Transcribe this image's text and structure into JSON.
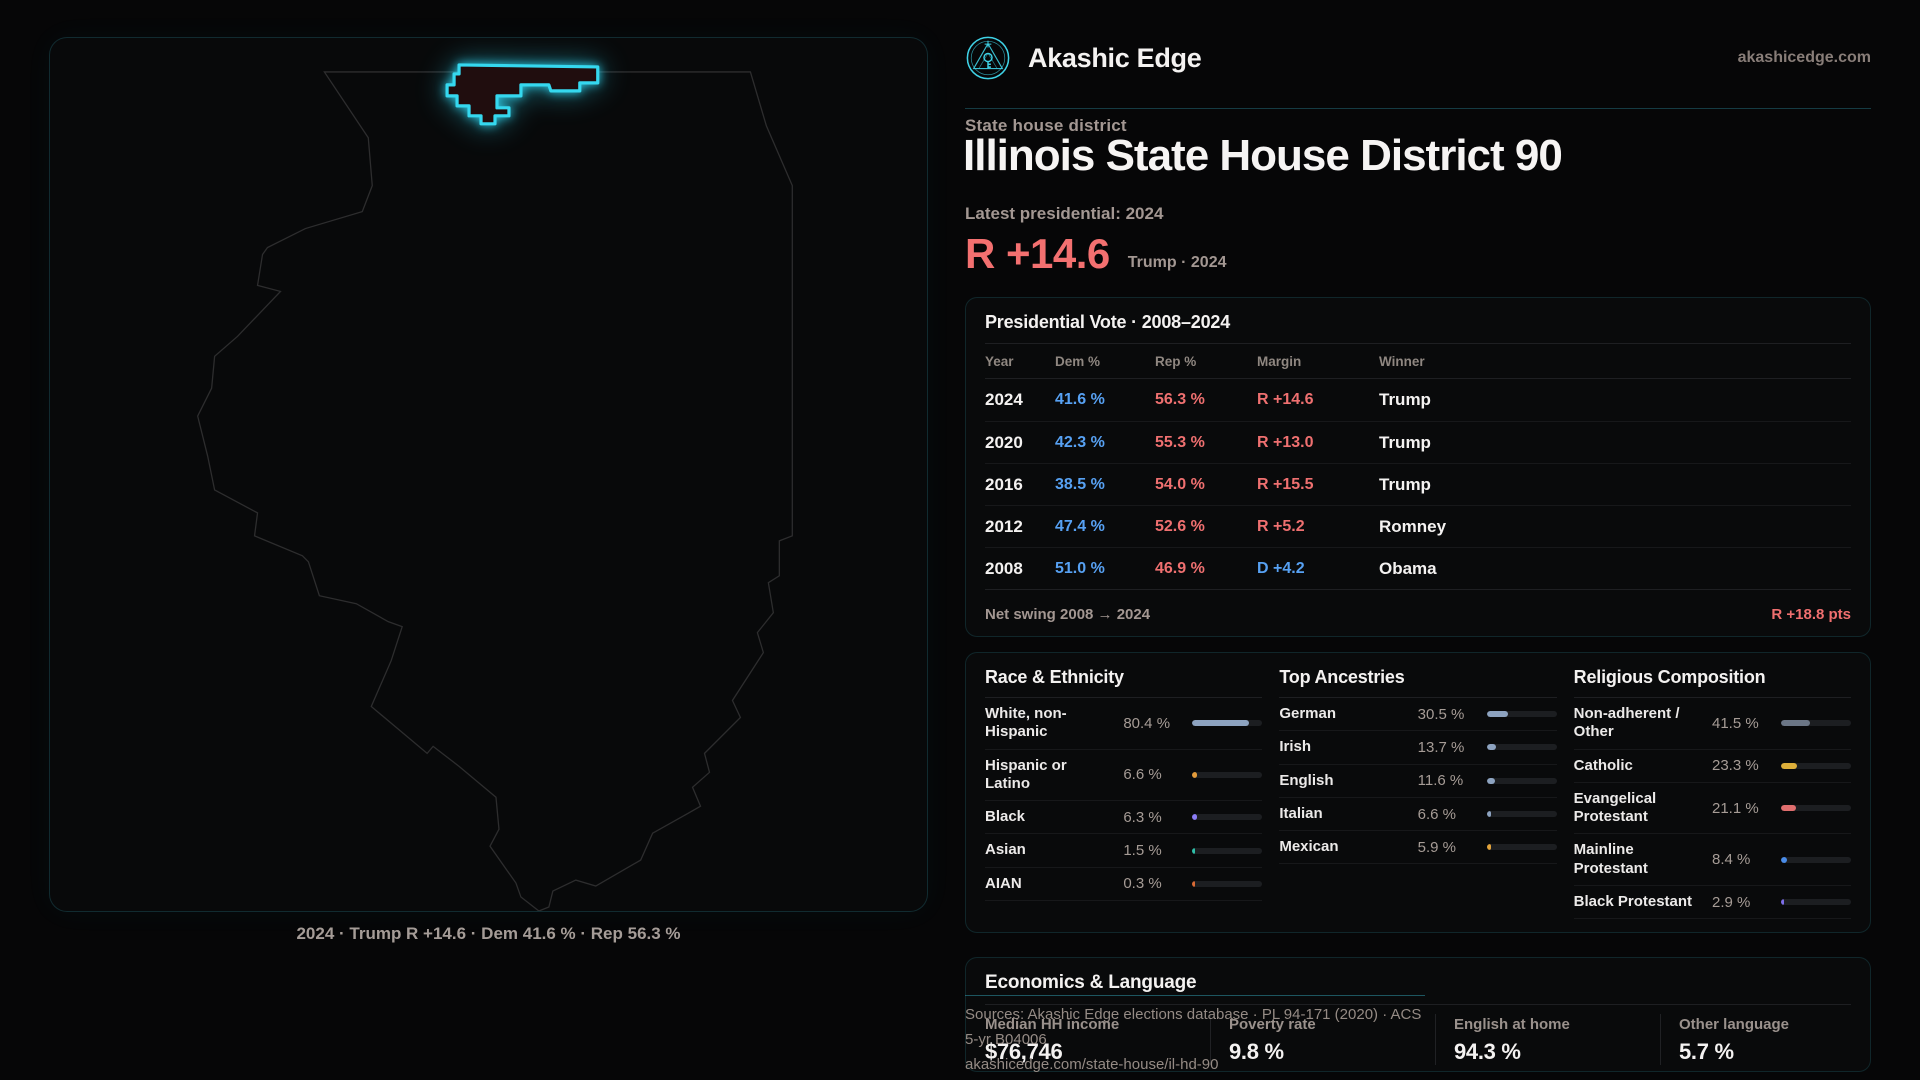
{
  "page": {
    "brand": "Akashic Edge",
    "site": "akashicedge.com",
    "eyebrow": "State house district",
    "title": "Illinois State House District 90",
    "latest_label": "Latest presidential: 2024",
    "headline_margin": "R +14.6",
    "headline_context": "Trump · 2024"
  },
  "map": {
    "caption": "2024 · Trump R +14.6 · Dem 41.6 % · Rep 56.3 %",
    "highlight_name": "district-90"
  },
  "vote_table": {
    "title": "Presidential Vote · 2008–2024",
    "columns": [
      "Year",
      "Dem %",
      "Rep %",
      "Margin",
      "Winner"
    ],
    "rows": [
      {
        "year": "2024",
        "dem": "41.6 %",
        "rep": "56.3 %",
        "margin": "R +14.6",
        "margin_party": "R",
        "winner": "Trump"
      },
      {
        "year": "2020",
        "dem": "42.3 %",
        "rep": "55.3 %",
        "margin": "R +13.0",
        "margin_party": "R",
        "winner": "Trump"
      },
      {
        "year": "2016",
        "dem": "38.5 %",
        "rep": "54.0 %",
        "margin": "R +15.5",
        "margin_party": "R",
        "winner": "Trump"
      },
      {
        "year": "2012",
        "dem": "47.4 %",
        "rep": "52.6 %",
        "margin": "R +5.2",
        "margin_party": "R",
        "winner": "Romney"
      },
      {
        "year": "2008",
        "dem": "51.0 %",
        "rep": "46.9 %",
        "margin": "D +4.2",
        "margin_party": "D",
        "winner": "Obama"
      }
    ],
    "net_swing_label": "Net swing 2008 → 2024",
    "net_swing_value": "R +18.8 pts"
  },
  "demographics": {
    "race": {
      "title": "Race & Ethnicity",
      "rows": [
        {
          "label": "White, non-Hispanic",
          "value": "80.4 %",
          "pct": 80.4,
          "color": "#8da3c0"
        },
        {
          "label": "Hispanic or Latino",
          "value": "6.6 %",
          "pct": 6.6,
          "color": "#e39b3b"
        },
        {
          "label": "Black",
          "value": "6.3 %",
          "pct": 6.3,
          "color": "#8b7cf6"
        },
        {
          "label": "Asian",
          "value": "1.5 %",
          "pct": 1.5,
          "color": "#2fbfa8"
        },
        {
          "label": "AIAN",
          "value": "0.3 %",
          "pct": 0.3,
          "color": "#d96a35"
        }
      ]
    },
    "ancestries": {
      "title": "Top Ancestries",
      "rows": [
        {
          "label": "German",
          "value": "30.5 %",
          "pct": 30.5,
          "color": "#8da3c0"
        },
        {
          "label": "Irish",
          "value": "13.7 %",
          "pct": 13.7,
          "color": "#8da3c0"
        },
        {
          "label": "English",
          "value": "11.6 %",
          "pct": 11.6,
          "color": "#8da3c0"
        },
        {
          "label": "Italian",
          "value": "6.6 %",
          "pct": 6.6,
          "color": "#8da3c0"
        },
        {
          "label": "Mexican",
          "value": "5.9 %",
          "pct": 5.9,
          "color": "#e3a43b"
        }
      ]
    },
    "religion": {
      "title": "Religious Composition",
      "rows": [
        {
          "label": "Non-adherent / Other",
          "value": "41.5 %",
          "pct": 41.5,
          "color": "#6b7686"
        },
        {
          "label": "Catholic",
          "value": "23.3 %",
          "pct": 23.3,
          "color": "#ddaf3a"
        },
        {
          "label": "Evangelical Protestant",
          "value": "21.1 %",
          "pct": 21.1,
          "color": "#e06e6e"
        },
        {
          "label": "Mainline Protestant",
          "value": "8.4 %",
          "pct": 8.4,
          "color": "#4a8ce8"
        },
        {
          "label": "Black Protestant",
          "value": "2.9 %",
          "pct": 2.9,
          "color": "#7d6ee8"
        }
      ]
    }
  },
  "economics": {
    "title": "Economics & Language",
    "stats": [
      {
        "label": "Median HH income",
        "value": "$76,746"
      },
      {
        "label": "Poverty rate",
        "value": "9.8 %"
      },
      {
        "label": "English at home",
        "value": "94.3 %"
      },
      {
        "label": "Other language",
        "value": "5.7 %"
      }
    ]
  },
  "sources": {
    "line1": "Sources: Akashic Edge elections database · PL 94-171 (2020) · ACS 5-yr B04006",
    "line2": "akashicedge.com/state-house/il-hd-90"
  },
  "icons": {
    "brand_logo": "akashic-edge-emblem"
  },
  "colors": {
    "accent_cyan": "#35d8ef",
    "dem_blue": "#57a1f3",
    "rep_red": "#ef7070",
    "headline_red": "#f37070",
    "muted_text": "#a39792",
    "bar_track": "#1c1e21",
    "district_fill": "#200d0e"
  }
}
